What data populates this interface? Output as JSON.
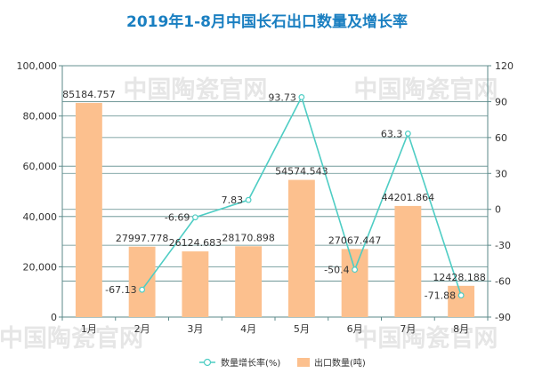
{
  "chart_data": {
    "type": "bar",
    "title": "2019年1-8月中国长石出口数量及增长率",
    "categories": [
      "1月",
      "2月",
      "3月",
      "4月",
      "5月",
      "6月",
      "7月",
      "8月"
    ],
    "series": [
      {
        "name": "出口数量(吨)",
        "type": "bar",
        "axis": "left",
        "values": [
          85184.757,
          27997.778,
          26124.683,
          28170.898,
          54574.543,
          27067.447,
          44201.864,
          12428.188
        ],
        "labels": [
          "85184.757",
          "27997.778",
          "26124.683",
          "28170.898",
          "54574.543",
          "27067.447",
          "44201.864",
          "12428.188"
        ],
        "color": "#fcc08e"
      },
      {
        "name": "数量增长率(%)",
        "type": "line",
        "axis": "right",
        "values": [
          null,
          -67.13,
          -6.69,
          7.83,
          93.73,
          -50.4,
          63.3,
          -71.88
        ],
        "labels": [
          "",
          "-67.13",
          "-6.69",
          "7.83",
          "93.73",
          "-50.4",
          "63.3",
          "-71.88"
        ],
        "color": "#4ecdc4"
      }
    ],
    "left_axis": {
      "ylim": [
        0,
        100000
      ],
      "ticks": [
        0,
        20000,
        40000,
        60000,
        80000,
        100000
      ],
      "tick_labels": [
        "0",
        "20,000",
        "40,000",
        "60,000",
        "80,000",
        "100,000"
      ]
    },
    "right_axis": {
      "ylim": [
        -90,
        120
      ],
      "ticks": [
        -90,
        -60,
        -30,
        0,
        30,
        60,
        90,
        120
      ],
      "tick_labels": [
        "-90",
        "-60",
        "-30",
        "0",
        "30",
        "60",
        "90",
        "120"
      ]
    },
    "grid": true,
    "legend_position": "bottom-center",
    "watermark": "中国陶瓷官网"
  }
}
